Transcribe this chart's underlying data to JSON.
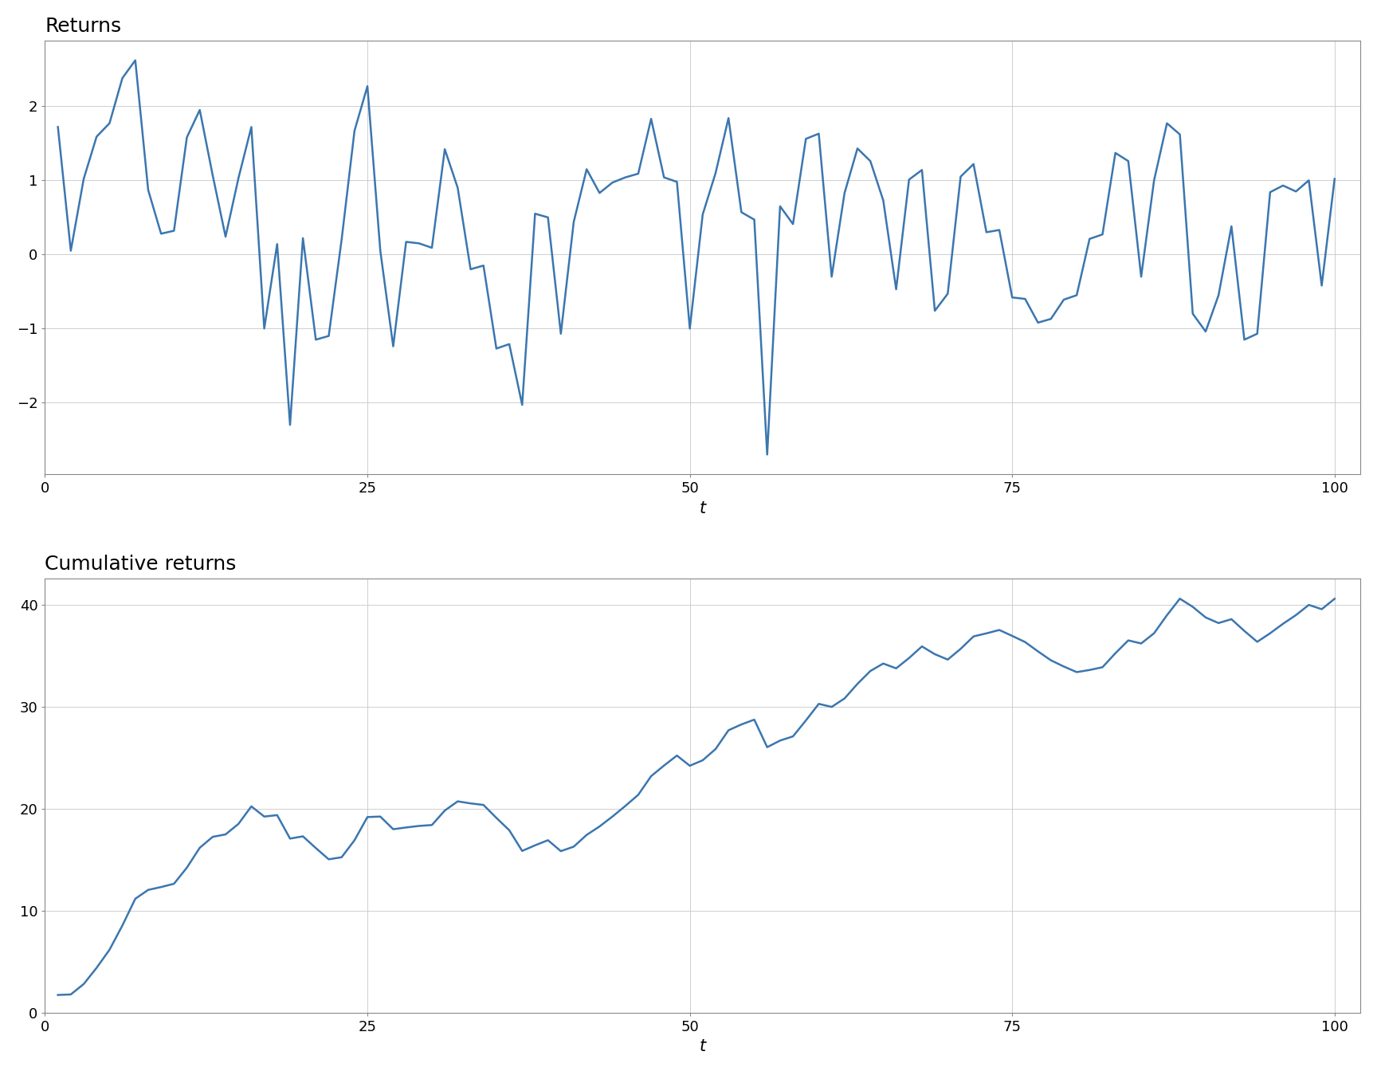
{
  "title1": "Returns",
  "title2": "Cumulative returns",
  "xlabel": "t",
  "line_color": "#3B76AF",
  "line_width": 1.8,
  "bg_color": "#ffffff",
  "panel_bg": "#ffffff",
  "grid_color": "#c8c8c8",
  "grid_lw": 0.6,
  "tick_label_size": 13,
  "axis_label_size": 15,
  "title_fontsize": 18,
  "title_fontweight": "normal",
  "returns": [
    1.72,
    0.05,
    1.02,
    1.59,
    1.77,
    2.38,
    2.62,
    0.87,
    0.28,
    0.32,
    1.58,
    1.95,
    1.07,
    0.24,
    1.03,
    1.72,
    -1.0,
    0.14,
    -2.3,
    0.22,
    -1.15,
    -1.1,
    0.2,
    1.67,
    2.27,
    0.05,
    -1.24,
    0.17,
    0.15,
    0.09,
    1.42,
    0.9,
    -0.2,
    -0.15,
    -1.27,
    -1.21,
    -2.03,
    0.55,
    0.5,
    -1.07,
    0.44,
    1.15,
    0.83,
    0.97,
    1.04,
    1.09,
    1.83,
    1.04,
    0.98,
    -1.0,
    0.54,
    1.1,
    1.84,
    0.57,
    0.47,
    -2.7,
    0.65,
    0.41,
    1.56,
    1.63,
    -0.3,
    0.83,
    1.43,
    1.26,
    0.73,
    -0.47,
    1.01,
    1.14,
    -0.76,
    -0.53,
    1.05,
    1.22,
    0.3,
    0.33,
    -0.58,
    -0.6,
    -0.92,
    -0.87,
    -0.61,
    -0.55,
    0.21,
    0.27,
    1.37,
    1.26,
    -0.3,
    1.0,
    1.77,
    1.62,
    -0.8,
    -1.04,
    -0.55,
    0.38,
    -1.15,
    -1.07,
    0.84,
    0.93,
    0.85,
    1.0,
    -0.42,
    1.02
  ],
  "xlim_min": 0,
  "xlim_max": 102,
  "xtick_major": 25,
  "returns_ylim": [
    -3.0,
    3.0
  ],
  "cumulative_ylim": [
    0,
    46
  ]
}
